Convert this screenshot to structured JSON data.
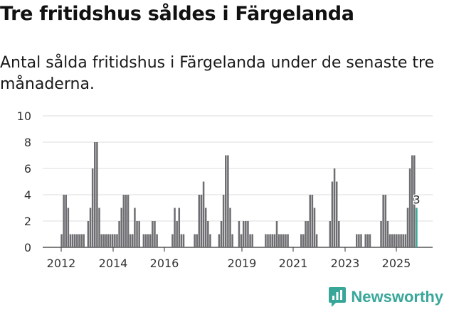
{
  "header": {
    "title": "Tre fritidshus såldes i Färgelanda",
    "subtitle": "Antal sålda fritidshus i Färgelanda under de senaste tre månaderna."
  },
  "brand": {
    "name": "Newsworthy",
    "icon": "bar-chart-logo-icon",
    "color": "#38a79a"
  },
  "chart_data": {
    "type": "bar",
    "title": "Tre fritidshus såldes i Färgelanda",
    "xlabel": "",
    "ylabel": "",
    "ylim": [
      0,
      10
    ],
    "yticks": [
      0,
      2,
      4,
      6,
      8,
      10
    ],
    "xticks": [
      "2012",
      "2014",
      "2016",
      "2019",
      "2021",
      "2023",
      "2025"
    ],
    "bar_color": "#6e6e72",
    "highlight_color": "#38a79a",
    "highlight_label": "3",
    "values": [
      0,
      0,
      0,
      0,
      0,
      0,
      0,
      0,
      1,
      4,
      4,
      3,
      1,
      1,
      1,
      1,
      1,
      1,
      1,
      0,
      2,
      3,
      6,
      8,
      8,
      3,
      1,
      1,
      1,
      1,
      1,
      1,
      1,
      1,
      2,
      3,
      4,
      4,
      4,
      1,
      1,
      3,
      2,
      2,
      0,
      1,
      1,
      1,
      1,
      2,
      2,
      1,
      0,
      0,
      0,
      0,
      0,
      0,
      1,
      3,
      2,
      3,
      1,
      1,
      0,
      0,
      0,
      0,
      1,
      1,
      4,
      4,
      5,
      3,
      2,
      1,
      0,
      0,
      0,
      1,
      2,
      4,
      7,
      7,
      3,
      1,
      0,
      0,
      2,
      1,
      2,
      2,
      2,
      1,
      1,
      0,
      0,
      0,
      0,
      0,
      1,
      1,
      1,
      1,
      1,
      2,
      1,
      1,
      1,
      1,
      1,
      0,
      0,
      0,
      0,
      0,
      1,
      1,
      2,
      2,
      4,
      4,
      3,
      1,
      0,
      0,
      0,
      0,
      0,
      2,
      5,
      6,
      5,
      2,
      0,
      0,
      0,
      0,
      0,
      0,
      0,
      1,
      1,
      1,
      0,
      1,
      1,
      1,
      0,
      0,
      0,
      0,
      2,
      4,
      4,
      2,
      1,
      1,
      1,
      1,
      1,
      1,
      1,
      1,
      3,
      6,
      7,
      7,
      3
    ]
  }
}
